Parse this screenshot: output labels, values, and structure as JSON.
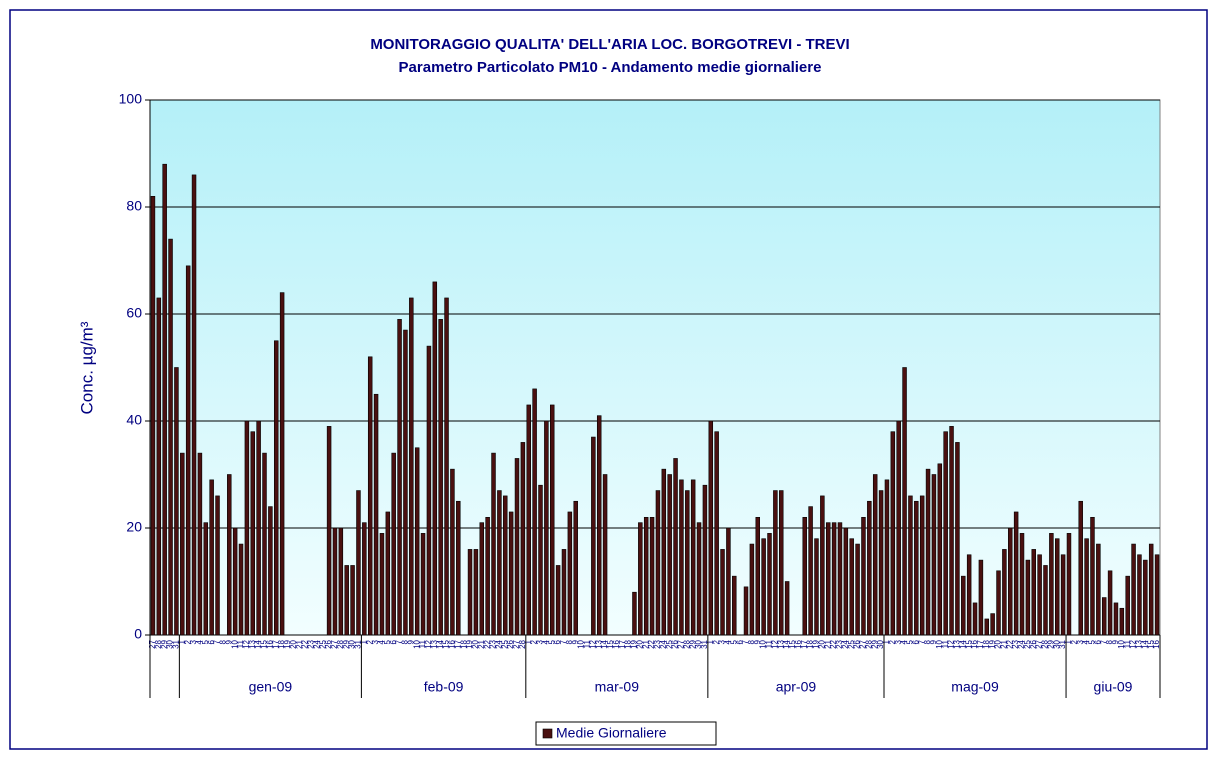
{
  "chart_data": {
    "type": "bar",
    "title": "MONITORAGGIO QUALITA' DELL'ARIA LOC. BORGOTREVI - TREVI",
    "subtitle": "Parametro Particolato PM10 - Andamento medie giornaliere",
    "y_label": "Conc.  µg/m³",
    "categories": [
      "27",
      "28",
      "29",
      "30",
      "31",
      "1",
      "2",
      "3",
      "4",
      "5",
      "6",
      "7",
      "8",
      "9",
      "10",
      "11",
      "12",
      "13",
      "14",
      "15",
      "16",
      "17",
      "18",
      "19",
      "20",
      "21",
      "22",
      "23",
      "24",
      "25",
      "26",
      "27",
      "28",
      "29",
      "30",
      "31",
      "1",
      "2",
      "3",
      "4",
      "5",
      "6",
      "7",
      "8",
      "9",
      "10",
      "11",
      "12",
      "13",
      "14",
      "15",
      "16",
      "17",
      "18",
      "19",
      "20",
      "21",
      "22",
      "23",
      "24",
      "25",
      "26",
      "27",
      "28",
      "1",
      "2",
      "3",
      "4",
      "5",
      "6",
      "7",
      "8",
      "9",
      "10",
      "11",
      "12",
      "13",
      "14",
      "15",
      "16",
      "17",
      "18",
      "19",
      "20",
      "21",
      "22",
      "23",
      "24",
      "25",
      "26",
      "27",
      "28",
      "29",
      "30",
      "31",
      "1",
      "2",
      "3",
      "4",
      "5",
      "6",
      "7",
      "8",
      "9",
      "10",
      "11",
      "12",
      "13",
      "14",
      "15",
      "16",
      "17",
      "18",
      "19",
      "20",
      "21",
      "22",
      "23",
      "24",
      "25",
      "26",
      "27",
      "28",
      "29",
      "30",
      "1",
      "2",
      "3",
      "4",
      "5",
      "6",
      "7",
      "8",
      "9",
      "10",
      "11",
      "12",
      "13",
      "14",
      "15",
      "16",
      "17",
      "18",
      "19",
      "20",
      "21",
      "22",
      "23",
      "24",
      "25",
      "26",
      "27",
      "28",
      "29",
      "30",
      "31",
      "1",
      "2",
      "3",
      "4",
      "5",
      "6",
      "7",
      "8",
      "9",
      "10",
      "11",
      "12",
      "13",
      "14",
      "15",
      "16"
    ],
    "month_labels": [
      null,
      "gen-09",
      "feb-09",
      "mar-09",
      "apr-09",
      "mag-09",
      "giu-09"
    ],
    "series": [
      {
        "name": "Medie Giornaliere",
        "color": "#4a1010",
        "values": [
          82,
          63,
          88,
          74,
          50,
          34,
          69,
          86,
          34,
          21,
          29,
          26,
          null,
          30,
          20,
          17,
          40,
          38,
          40,
          34,
          24,
          55,
          64,
          null,
          null,
          null,
          null,
          null,
          null,
          null,
          39,
          20,
          20,
          13,
          13,
          27,
          21,
          52,
          45,
          19,
          23,
          34,
          59,
          57,
          63,
          35,
          19,
          54,
          66,
          59,
          63,
          31,
          25,
          null,
          16,
          16,
          21,
          22,
          34,
          27,
          26,
          23,
          33,
          36,
          43,
          46,
          28,
          40,
          43,
          13,
          16,
          23,
          25,
          null,
          null,
          37,
          41,
          30,
          null,
          null,
          null,
          null,
          8,
          21,
          22,
          22,
          27,
          31,
          30,
          33,
          29,
          27,
          29,
          21,
          28,
          40,
          38,
          16,
          20,
          11,
          null,
          9,
          17,
          22,
          18,
          19,
          27,
          27,
          10,
          null,
          null,
          22,
          24,
          18,
          26,
          21,
          21,
          21,
          20,
          18,
          17,
          22,
          25,
          30,
          27,
          29,
          38,
          40,
          50,
          26,
          25,
          26,
          31,
          30,
          32,
          38,
          39,
          36,
          11,
          15,
          6,
          14,
          3,
          4,
          12,
          16,
          20,
          23,
          19,
          14,
          16,
          15,
          13,
          19,
          18,
          15,
          19,
          null,
          25,
          18,
          22,
          17,
          7,
          12,
          6,
          5,
          11,
          17,
          15,
          14,
          17,
          15
        ]
      }
    ],
    "ylim": [
      0,
      100
    ],
    "yticks": [
      0,
      20,
      40,
      60,
      80,
      100
    ],
    "grid": true,
    "legend": "bottom"
  }
}
